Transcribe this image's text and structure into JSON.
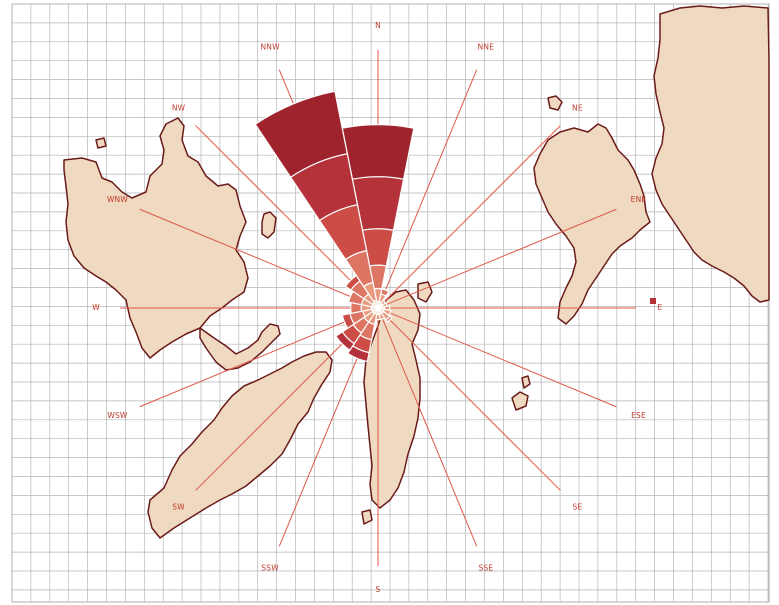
{
  "map": {
    "direction_labels": [
      {
        "text": "N",
        "bearing": 0
      },
      {
        "text": "NNE",
        "bearing": 22.5
      },
      {
        "text": "NE",
        "bearing": 45
      },
      {
        "text": "ENE",
        "bearing": 67.5
      },
      {
        "text": "E",
        "bearing": 90
      },
      {
        "text": "ESE",
        "bearing": 112.5
      },
      {
        "text": "SE",
        "bearing": 135
      },
      {
        "text": "SSE",
        "bearing": 157.5
      },
      {
        "text": "S",
        "bearing": 180
      },
      {
        "text": "SSW",
        "bearing": 202.5
      },
      {
        "text": "SW",
        "bearing": 225
      },
      {
        "text": "WSW",
        "bearing": 247.5
      },
      {
        "text": "W",
        "bearing": 270
      },
      {
        "text": "WNW",
        "bearing": 292.5
      },
      {
        "text": "NW",
        "bearing": 315
      },
      {
        "text": "NNW",
        "bearing": 337.5
      }
    ],
    "colors": {
      "land_fill": "#efd9c0",
      "coast_stroke": "#6a1a1a",
      "grid": "#b5b5b5",
      "rays": "#e0584a",
      "label_text": "#c0392b",
      "rose_bands": [
        "#f2c29f",
        "#e89a7e",
        "#dd7565",
        "#cc4c46",
        "#b5323a",
        "#9f232d"
      ]
    },
    "wind_rose": {
      "sectors": [
        {
          "bearing": 0,
          "bands": [
            0.05,
            0.1,
            0.18,
            0.28,
            0.4,
            0.4
          ]
        },
        {
          "bearing": 22.5,
          "bands": [
            0.05,
            0.06,
            0.04,
            0.0,
            0.0,
            0.0
          ]
        },
        {
          "bearing": 45,
          "bands": [
            0.04,
            0.03,
            0.0,
            0.0,
            0.0,
            0.0
          ]
        },
        {
          "bearing": 67.5,
          "bands": [
            0.04,
            0.03,
            0.0,
            0.0,
            0.0,
            0.0
          ]
        },
        {
          "bearing": 90,
          "bands": [
            0.05,
            0.04,
            0.0,
            0.0,
            0.0,
            0.0
          ]
        },
        {
          "bearing": 112.5,
          "bands": [
            0.05,
            0.05,
            0.0,
            0.0,
            0.0,
            0.0
          ]
        },
        {
          "bearing": 135,
          "bands": [
            0.05,
            0.06,
            0.02,
            0.0,
            0.0,
            0.0
          ]
        },
        {
          "bearing": 157.5,
          "bands": [
            0.05,
            0.04,
            0.0,
            0.0,
            0.0,
            0.0
          ]
        },
        {
          "bearing": 180,
          "bands": [
            0.05,
            0.04,
            0.0,
            0.0,
            0.0,
            0.0
          ]
        },
        {
          "bearing": 202.5,
          "bands": [
            0.05,
            0.08,
            0.12,
            0.1,
            0.07,
            0.0
          ]
        },
        {
          "bearing": 225,
          "bands": [
            0.05,
            0.08,
            0.1,
            0.1,
            0.06,
            0.0
          ]
        },
        {
          "bearing": 247.5,
          "bands": [
            0.05,
            0.07,
            0.1,
            0.06,
            0.0,
            0.0
          ]
        },
        {
          "bearing": 270,
          "bands": [
            0.05,
            0.08,
            0.08,
            0.0,
            0.0,
            0.0
          ]
        },
        {
          "bearing": 292.5,
          "bands": [
            0.05,
            0.08,
            0.1,
            0.0,
            0.0,
            0.0
          ]
        },
        {
          "bearing": 315,
          "bands": [
            0.05,
            0.08,
            0.12,
            0.05,
            0.0,
            0.0
          ]
        },
        {
          "bearing": 337.5,
          "bands": [
            0.06,
            0.14,
            0.25,
            0.36,
            0.4,
            0.49
          ]
        }
      ]
    }
  }
}
